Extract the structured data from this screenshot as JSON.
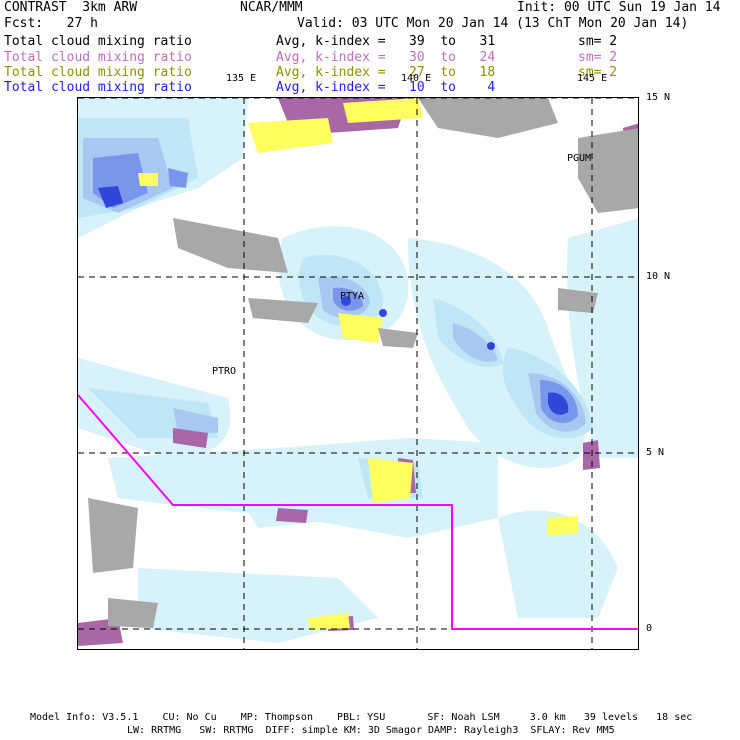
{
  "header": {
    "title": "CONTRAST  3km ARW",
    "org": "NCAR/MMM",
    "init": "Init: 00 UTC Sun 19 Jan 14",
    "fcst": "Fcst:   27 h",
    "valid": "Valid: 03 UTC Mon 20 Jan 14 (13 ChT Mon 20 Jan 14)"
  },
  "legend": [
    {
      "field": "Total cloud mixing ratio",
      "avg": "Avg, k-index =   39  to   31",
      "sm": "sm= 2",
      "color": "#000000"
    },
    {
      "field": "Total cloud mixing ratio",
      "avg": "Avg, k-index =   30  to   24",
      "sm": "sm= 2",
      "color": "#c070c0"
    },
    {
      "field": "Total cloud mixing ratio",
      "avg": "Avg, k-index =   27  to   18",
      "sm": "sm= 2",
      "color": "#909000"
    },
    {
      "field": "Total cloud mixing ratio",
      "avg": "Avg, k-index =   10  to    4",
      "sm": "",
      "color": "#2020ff"
    }
  ],
  "grid": {
    "lon_labels": [
      "135 E",
      "140 E",
      "145 E"
    ],
    "lat_labels": [
      "15 N",
      "10 N",
      "5 N",
      "0"
    ]
  },
  "stations": [
    "PGUM",
    "PTYA",
    "PTRO"
  ],
  "footer": {
    "line1": "Model Info: V3.5.1    CU: No Cu    MP: Thompson    PBL: YSU       SF: Noah LSM     3.0 km   39 levels   18 sec",
    "line2": "LW: RRTMG   SW: RRTMG  DIFF: simple KM: 3D Smagor DAMP: Rayleigh3  SFLAY: Rev MM5"
  },
  "colors": {
    "light_cyan": "#d8f2fa",
    "cyan": "#bfe6f6",
    "light_blue": "#a8c8f2",
    "blue": "#7896ea",
    "dark_blue": "#3048d8",
    "purple": "#a868a8",
    "yellow": "#ffff60",
    "gray": "#a8a8a8",
    "boundary": "#ff00ff"
  }
}
